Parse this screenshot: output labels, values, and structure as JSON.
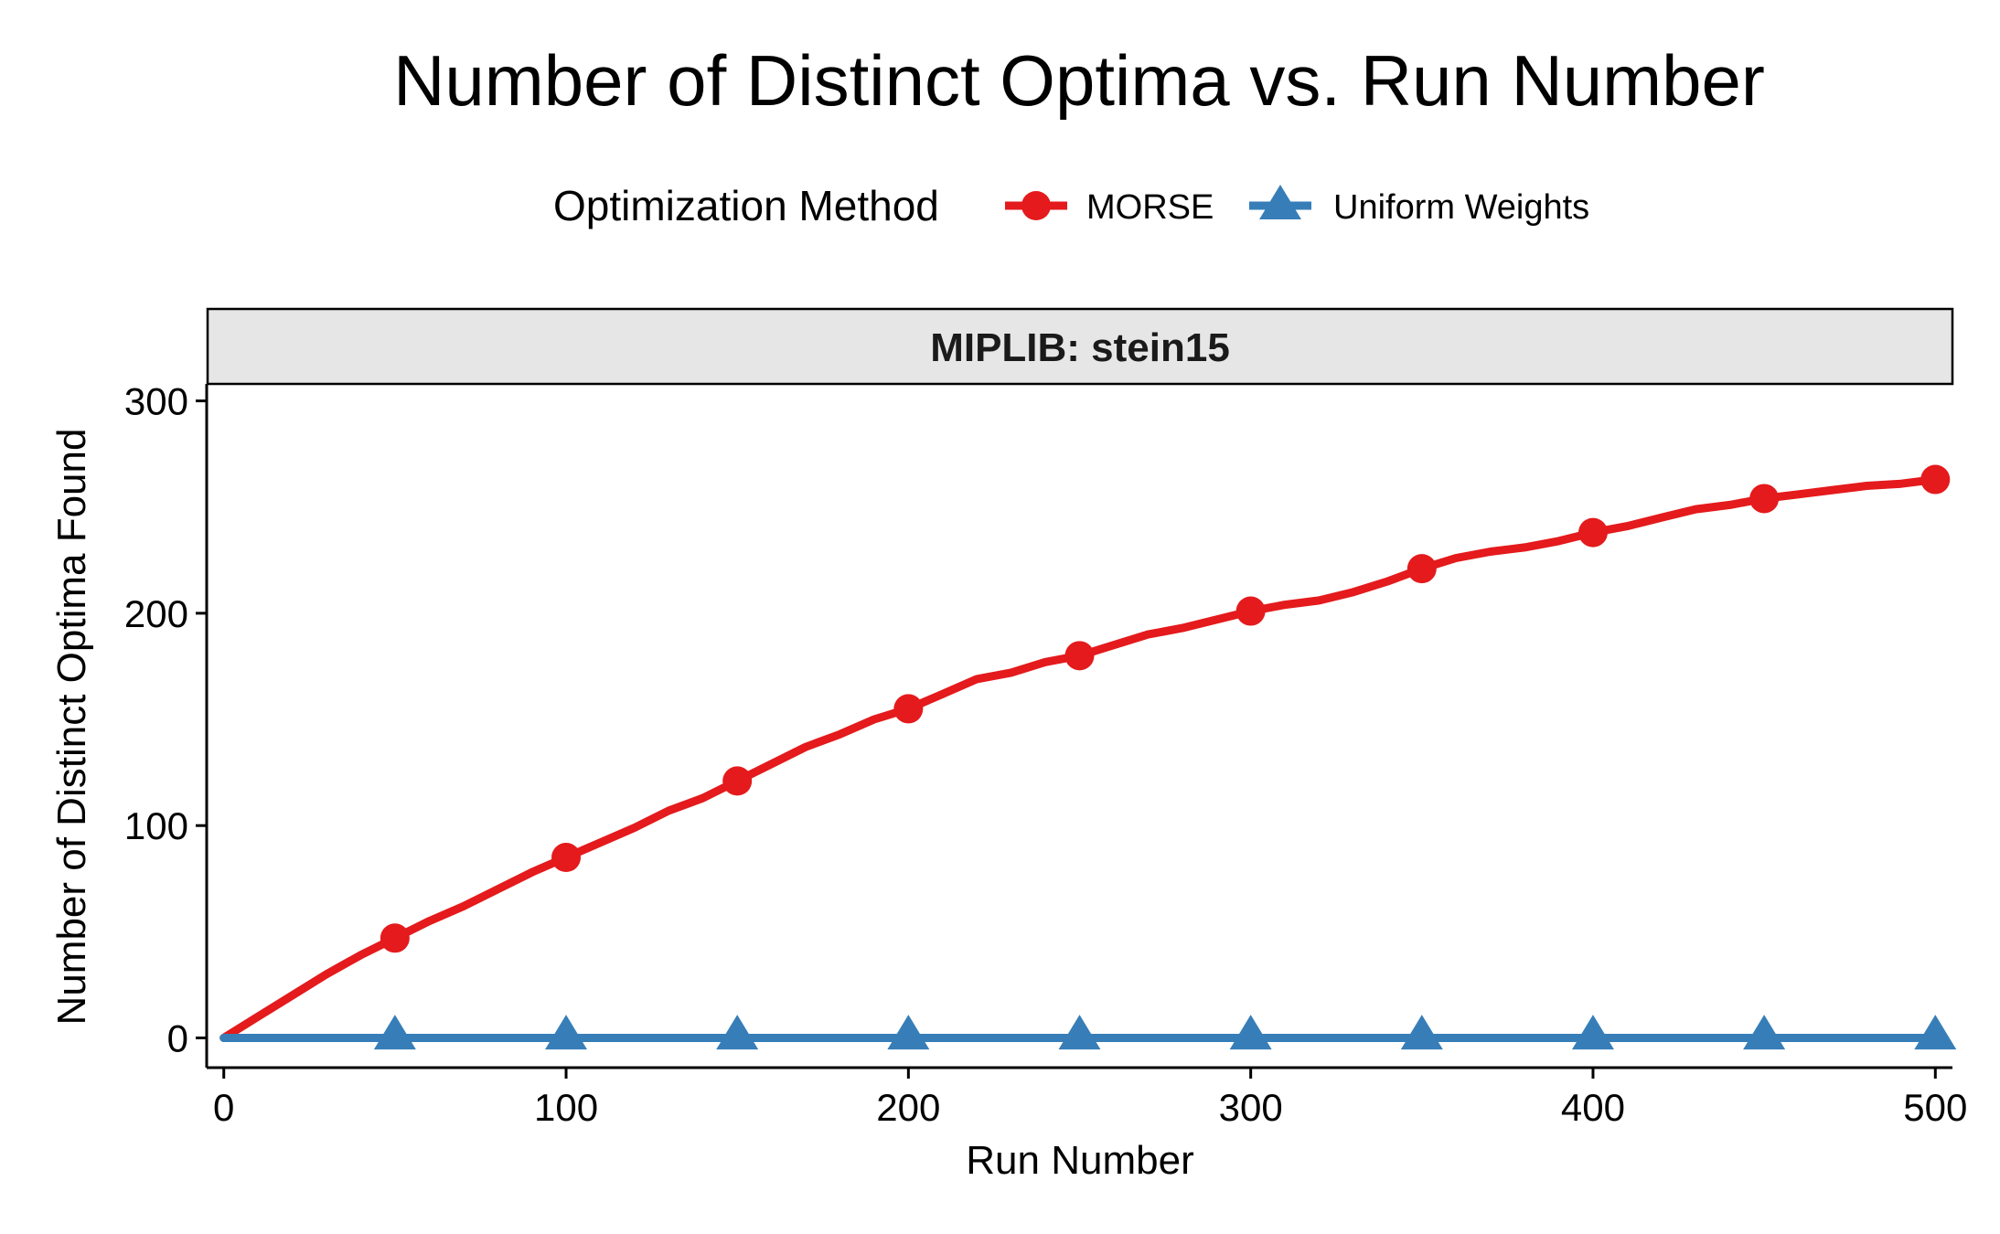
{
  "chart_data": {
    "type": "line",
    "title": "Number of Distinct Optima vs. Run Number",
    "xlabel": "Run Number",
    "ylabel": "Number of Distinct Optima Found",
    "facet_label": "MIPLIB: stein15",
    "legend": {
      "title": "Optimization Method",
      "placement": "top"
    },
    "xlim": [
      -5,
      505
    ],
    "ylim": [
      -14,
      308
    ],
    "x_ticks": [
      0,
      100,
      200,
      300,
      400,
      500
    ],
    "y_ticks": [
      0,
      100,
      200,
      300
    ],
    "grid": false,
    "series": [
      {
        "name": "MORSE",
        "color": "#E41A1C",
        "marker": "circle",
        "line_x": [
          0,
          10,
          20,
          30,
          40,
          50,
          60,
          70,
          80,
          90,
          100,
          110,
          120,
          130,
          140,
          150,
          160,
          170,
          180,
          190,
          200,
          210,
          220,
          230,
          240,
          250,
          260,
          270,
          280,
          290,
          300,
          310,
          320,
          330,
          340,
          350,
          360,
          370,
          380,
          390,
          400,
          410,
          420,
          430,
          440,
          450,
          460,
          470,
          480,
          490,
          500
        ],
        "line_y": [
          0,
          10,
          20,
          30,
          39,
          47,
          55,
          62,
          70,
          78,
          85,
          92,
          99,
          107,
          113,
          121,
          129,
          137,
          143,
          150,
          155,
          162,
          169,
          172,
          177,
          180,
          185,
          190,
          193,
          197,
          201,
          204,
          206,
          210,
          215,
          221,
          226,
          229,
          231,
          234,
          238,
          241,
          245,
          249,
          251,
          254,
          256,
          258,
          260,
          261,
          263
        ],
        "marker_x": [
          50,
          100,
          150,
          200,
          250,
          300,
          350,
          400,
          450,
          500
        ],
        "marker_y": [
          47,
          85,
          121,
          155,
          180,
          201,
          221,
          238,
          254,
          263
        ]
      },
      {
        "name": "Uniform Weights",
        "color": "#377EB8",
        "marker": "triangle",
        "line_x": [
          0,
          500
        ],
        "line_y": [
          0,
          0
        ],
        "marker_x": [
          50,
          100,
          150,
          200,
          250,
          300,
          350,
          400,
          450,
          500
        ],
        "marker_y": [
          1,
          1,
          1,
          1,
          1,
          1,
          1,
          1,
          1,
          1
        ]
      }
    ]
  }
}
